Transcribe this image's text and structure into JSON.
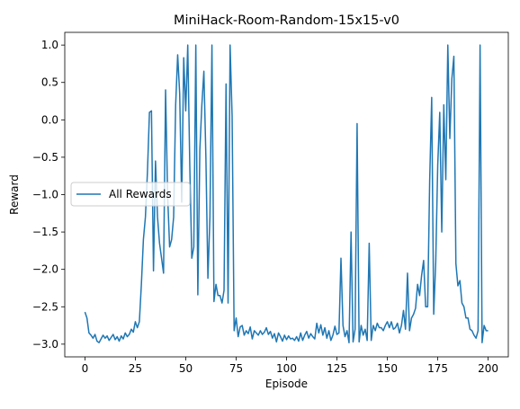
{
  "chart_data": {
    "type": "line",
    "title": "MiniHack-Room-Random-15x15-v0",
    "xlabel": "Episode",
    "ylabel": "Reward",
    "xlim": [
      -10,
      210
    ],
    "ylim": [
      -3.17,
      1.17
    ],
    "xticks": [
      0,
      25,
      50,
      75,
      100,
      125,
      150,
      175,
      200
    ],
    "yticks": [
      -3.0,
      -2.5,
      -2.0,
      -1.5,
      -1.0,
      -0.5,
      0.0,
      0.5,
      1.0
    ],
    "ytick_labels": [
      "−3.0",
      "−2.5",
      "−2.0",
      "−1.5",
      "−1.0",
      "−0.5",
      "0.0",
      "0.5",
      "1.0"
    ],
    "grid": false,
    "legend": {
      "position": "center-left",
      "entries": [
        "All Rewards"
      ]
    },
    "series": [
      {
        "name": "All Rewards",
        "color": "#1f77b4",
        "x_start": 0,
        "x_step": 1,
        "values": [
          -2.57,
          -2.65,
          -2.85,
          -2.88,
          -2.92,
          -2.87,
          -2.96,
          -2.98,
          -2.93,
          -2.88,
          -2.92,
          -2.89,
          -2.95,
          -2.91,
          -2.87,
          -2.94,
          -2.9,
          -2.96,
          -2.89,
          -2.93,
          -2.85,
          -2.9,
          -2.87,
          -2.8,
          -2.84,
          -2.7,
          -2.78,
          -2.7,
          -2.2,
          -1.6,
          -1.3,
          -0.7,
          0.1,
          0.12,
          -2.02,
          -0.55,
          -1.3,
          -1.65,
          -1.85,
          -2.05,
          0.4,
          -1.0,
          -1.7,
          -1.6,
          -1.3,
          0.2,
          0.87,
          0.35,
          -1.1,
          0.83,
          0.12,
          1.0,
          -0.6,
          -1.85,
          -1.7,
          1.0,
          -2.34,
          -0.4,
          0.2,
          0.65,
          -0.5,
          -2.12,
          -1.3,
          1.0,
          -2.43,
          -2.2,
          -2.35,
          -2.35,
          -2.45,
          -2.28,
          0.48,
          -2.45,
          1.0,
          0.05,
          -2.82,
          -2.65,
          -2.9,
          -2.77,
          -2.75,
          -2.88,
          -2.82,
          -2.86,
          -2.77,
          -2.93,
          -2.82,
          -2.85,
          -2.88,
          -2.82,
          -2.87,
          -2.84,
          -2.78,
          -2.87,
          -2.83,
          -2.92,
          -2.86,
          -2.97,
          -2.85,
          -2.9,
          -2.96,
          -2.88,
          -2.94,
          -2.89,
          -2.93,
          -2.92,
          -2.95,
          -2.9,
          -2.96,
          -2.85,
          -2.95,
          -2.88,
          -2.83,
          -2.92,
          -2.86,
          -2.9,
          -2.93,
          -2.72,
          -2.85,
          -2.74,
          -2.88,
          -2.78,
          -2.92,
          -2.82,
          -2.95,
          -2.88,
          -2.76,
          -2.87,
          -2.85,
          -1.85,
          -2.75,
          -2.9,
          -2.82,
          -2.98,
          -1.5,
          -2.97,
          -2.8,
          -0.05,
          -2.97,
          -2.75,
          -2.88,
          -2.8,
          -2.95,
          -1.65,
          -2.95,
          -2.75,
          -2.82,
          -2.72,
          -2.78,
          -2.78,
          -2.82,
          -2.75,
          -2.7,
          -2.78,
          -2.7,
          -2.8,
          -2.78,
          -2.72,
          -2.85,
          -2.75,
          -2.55,
          -2.8,
          -2.05,
          -2.82,
          -2.65,
          -2.6,
          -2.52,
          -2.2,
          -2.35,
          -2.08,
          -1.88,
          -2.5,
          -2.5,
          -0.82,
          0.3,
          -2.6,
          -1.9,
          -0.6,
          0.1,
          -1.5,
          0.2,
          -0.8,
          1.0,
          -0.25,
          0.55,
          0.85,
          -1.92,
          -2.22,
          -2.15,
          -2.45,
          -2.5,
          -2.65,
          -2.65,
          -2.8,
          -2.82,
          -2.88,
          -2.92,
          -2.82,
          1.0,
          -2.98,
          -2.75,
          -2.82,
          -2.82
        ]
      }
    ]
  }
}
